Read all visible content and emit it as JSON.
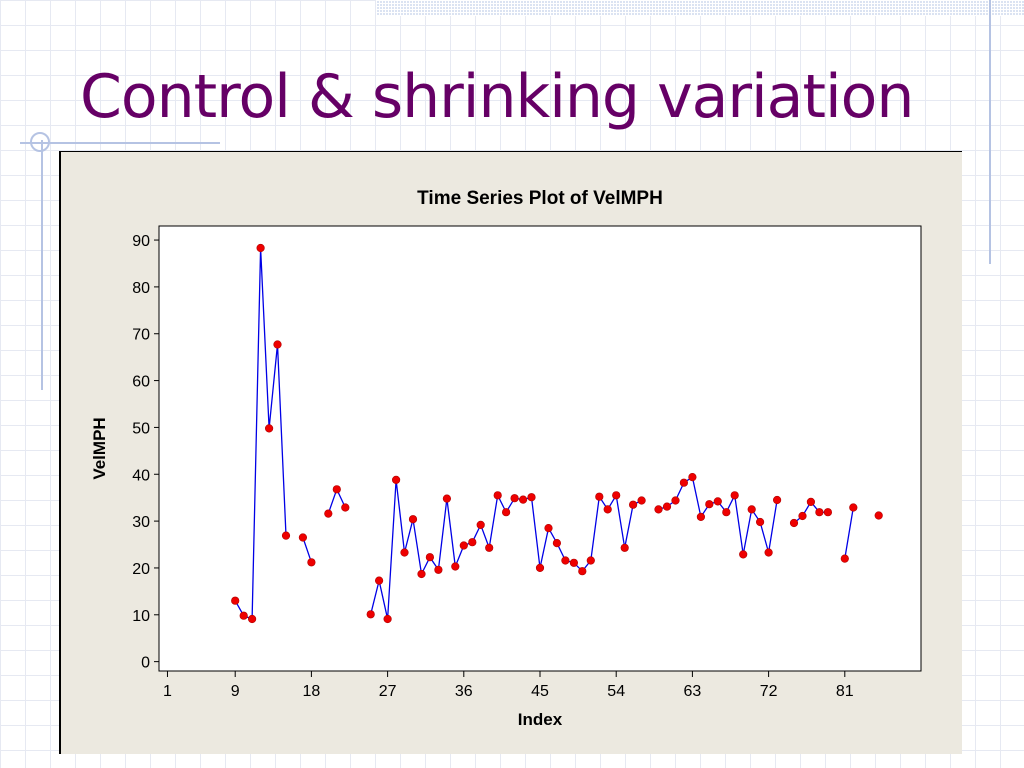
{
  "slide": {
    "title": "Control & shrinking variation"
  },
  "chart_data": {
    "type": "line",
    "title": "Time Series Plot of VelMPH",
    "xlabel": "Index",
    "ylabel": "VelMPH",
    "xlim": [
      0,
      90
    ],
    "ylim": [
      -2,
      93
    ],
    "x_ticks": [
      1,
      9,
      18,
      27,
      36,
      45,
      54,
      63,
      72,
      81
    ],
    "y_ticks": [
      0,
      10,
      20,
      30,
      40,
      50,
      60,
      70,
      80,
      90
    ],
    "grid": false,
    "legend": "none",
    "line_color": "#0000e6",
    "marker_color": "#ee0000",
    "series": [
      {
        "x": [
          9,
          10,
          11,
          12,
          13,
          14,
          15,
          17,
          18,
          20,
          21,
          22,
          25,
          26,
          27,
          28,
          29,
          30,
          31,
          32,
          33,
          34,
          35,
          36,
          37,
          38,
          39,
          40,
          41,
          42,
          43,
          44,
          45,
          46,
          47,
          48,
          49,
          50,
          51,
          52,
          53,
          54,
          55,
          56,
          57,
          59,
          60,
          61,
          62,
          63,
          64,
          65,
          66,
          67,
          68,
          69,
          70,
          71,
          72,
          73,
          75,
          76,
          77,
          78,
          79,
          81,
          82,
          85
        ],
        "y": [
          13,
          9.8,
          9.1,
          88.3,
          49.8,
          67.7,
          26.9,
          26.5,
          21.2,
          31.6,
          36.8,
          32.9,
          10.1,
          17.3,
          9.1,
          38.8,
          23.3,
          30.4,
          18.7,
          22.3,
          19.6,
          34.8,
          20.3,
          24.8,
          25.5,
          29.2,
          24.3,
          35.5,
          31.9,
          34.9,
          34.6,
          35.1,
          20,
          28.5,
          25.3,
          21.6,
          21.1,
          19.3,
          21.6,
          35.2,
          32.5,
          35.5,
          24.3,
          33.5,
          34.4,
          32.5,
          33.1,
          34.4,
          38.2,
          39.4,
          30.9,
          33.6,
          34.2,
          31.9,
          35.5,
          22.9,
          32.5,
          29.8,
          23.3,
          34.5,
          29.6,
          31.1,
          34.1,
          31.9,
          31.9,
          22,
          32.9,
          31.2
        ],
        "segment_breaks_before_x": [
          17,
          20,
          25,
          59,
          75,
          81,
          85
        ]
      }
    ]
  }
}
